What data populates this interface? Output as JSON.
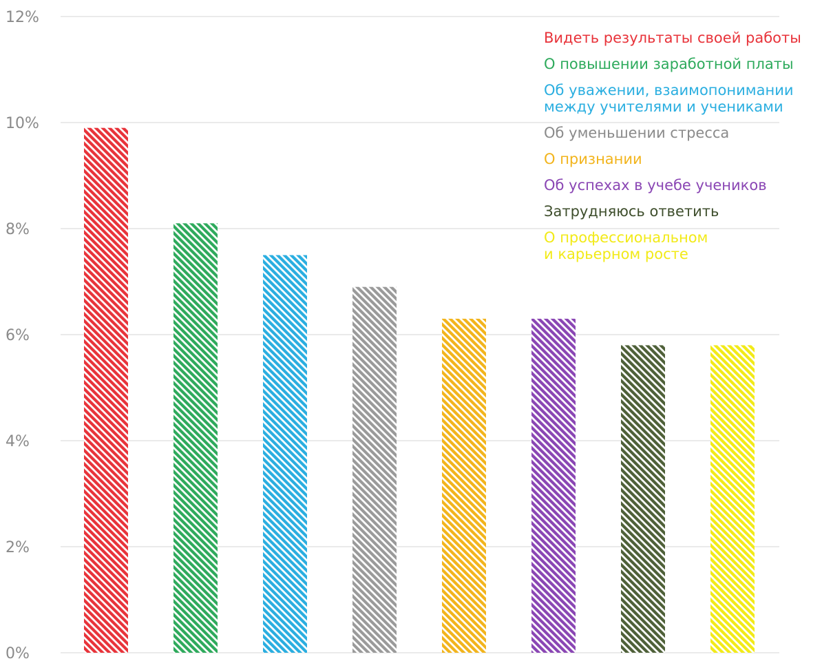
{
  "chart_data": {
    "type": "bar",
    "title": "",
    "xlabel": "",
    "ylabel": "",
    "ylim": [
      0,
      12
    ],
    "yticks": [
      "0%",
      "2%",
      "4%",
      "6%",
      "8%",
      "10%",
      "12%"
    ],
    "grid": true,
    "legend_position": "top-right",
    "categories": [
      "Видеть результаты своей работы",
      "О повышении заработной платы",
      "Об уважении, взаимопонимании между учителями и учениками",
      "Об уменьшении стресса",
      "О признании",
      "Об успехах в учебе учеников",
      "Затрудняюсь ответить",
      "О профессиональном и карьерном росте"
    ],
    "values": [
      9.9,
      8.1,
      7.5,
      6.9,
      6.3,
      6.3,
      5.8,
      5.8
    ],
    "colors": [
      "#e8333a",
      "#2eaa5c",
      "#2aaee0",
      "#9a9a9a",
      "#f2b41c",
      "#8a46b4",
      "#4e6038",
      "#f2ea18"
    ],
    "legend": [
      {
        "lines": [
          "Видеть результаты своей работы"
        ],
        "color": "#e8333a"
      },
      {
        "lines": [
          "О повышении заработной платы"
        ],
        "color": "#2eaa5c"
      },
      {
        "lines": [
          "Об уважении, взаимопонимании",
          "между учителями и учениками"
        ],
        "color": "#2aaee0"
      },
      {
        "lines": [
          "Об уменьшении стресса"
        ],
        "color": "#8a8a8a"
      },
      {
        "lines": [
          "О признании"
        ],
        "color": "#f2b41c"
      },
      {
        "lines": [
          "Об успехах в учебе учеников"
        ],
        "color": "#8a46b4"
      },
      {
        "lines": [
          "Затрудняюсь ответить"
        ],
        "color": "#3e4e2c"
      },
      {
        "lines": [
          "О профессиональном",
          "и карьерном росте"
        ],
        "color": "#f2ea18"
      }
    ]
  }
}
